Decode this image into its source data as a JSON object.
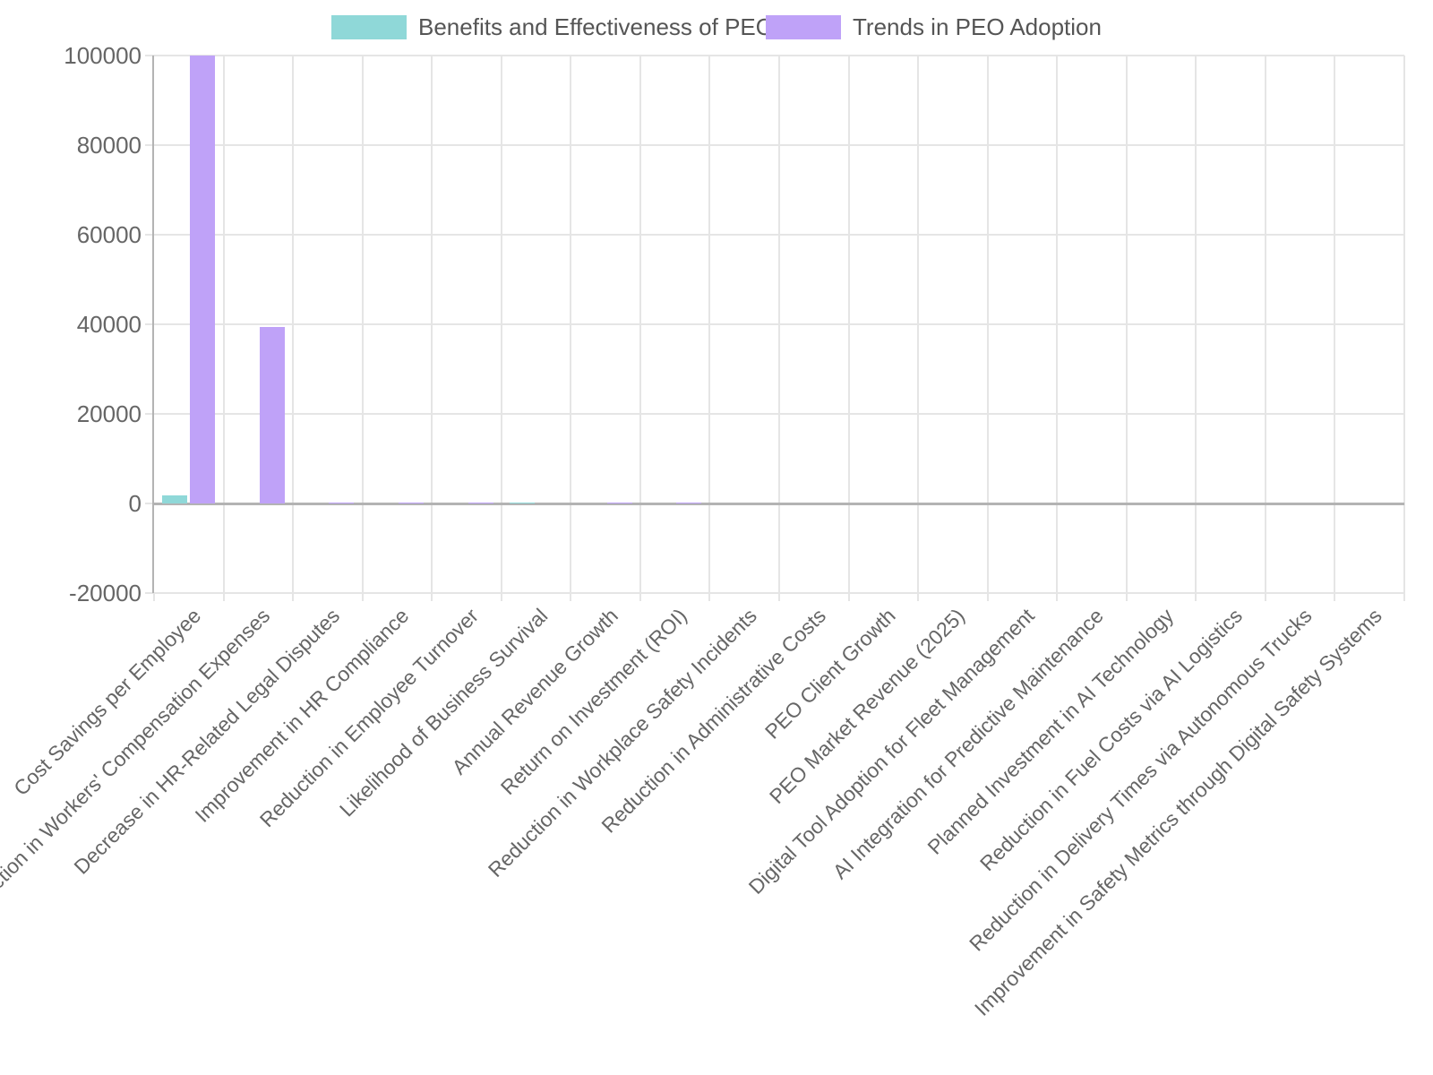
{
  "legend": {
    "items": [
      {
        "label": "Benefits and Effectiveness of PEOs",
        "color": "#8fd8d8"
      },
      {
        "label": "Trends in PEO Adoption",
        "color": "#bfa2f8"
      }
    ]
  },
  "colors": {
    "series_benefits": "#8fd8d8",
    "series_trends": "#bfa2f8",
    "grid": "#e5e5e5",
    "axis": "#b3b3b3",
    "tick_text": "#666666",
    "legend_text": "#555555",
    "background": "#ffffff"
  },
  "chart_data": {
    "type": "bar",
    "title": "",
    "xlabel": "",
    "ylabel": "",
    "legend_position": "top",
    "grid": true,
    "ylim": [
      -20000,
      100000
    ],
    "yticks": [
      100000,
      80000,
      60000,
      40000,
      20000,
      0,
      -20000
    ],
    "ytick_labels": [
      "100000",
      "80000",
      "60000",
      "40000",
      "20000",
      "0",
      "-20000"
    ],
    "categories": [
      "Cost Savings per Employee",
      "Reduction in Workers' Compensation Expenses",
      "Decrease in HR-Related Legal Disputes",
      "Improvement in HR Compliance",
      "Reduction in Employee Turnover",
      "Likelihood of Business Survival",
      "Annual Revenue Growth",
      "Return on Investment (ROI)",
      "Reduction in Workplace Safety Incidents",
      "Reduction in Administrative Costs",
      "PEO Client Growth",
      "PEO Market Revenue (2025)",
      "Digital Tool Adoption for Fleet Management",
      "AI Integration for Predictive Maintenance",
      "Planned Investment in AI Technology",
      "Reduction in Fuel Costs via AI Logistics",
      "Reduction in Delivery Times via Autonomous Trucks",
      "Improvement in Safety Metrics through Digital Safety Systems"
    ],
    "series": [
      {
        "name": "Benefits and Effectiveness of PEOs",
        "color": "#8fd8d8",
        "values": [
          1775,
          0,
          0,
          0,
          0,
          180,
          0,
          0,
          0,
          0,
          0,
          0,
          0,
          0,
          0,
          0,
          0,
          0
        ]
      },
      {
        "name": "Trends in PEO Adoption",
        "color": "#bfa2f8",
        "values": [
          100000,
          39500,
          250,
          230,
          210,
          0,
          200,
          190,
          0,
          0,
          0,
          0,
          0,
          0,
          0,
          0,
          0,
          0
        ]
      }
    ]
  }
}
